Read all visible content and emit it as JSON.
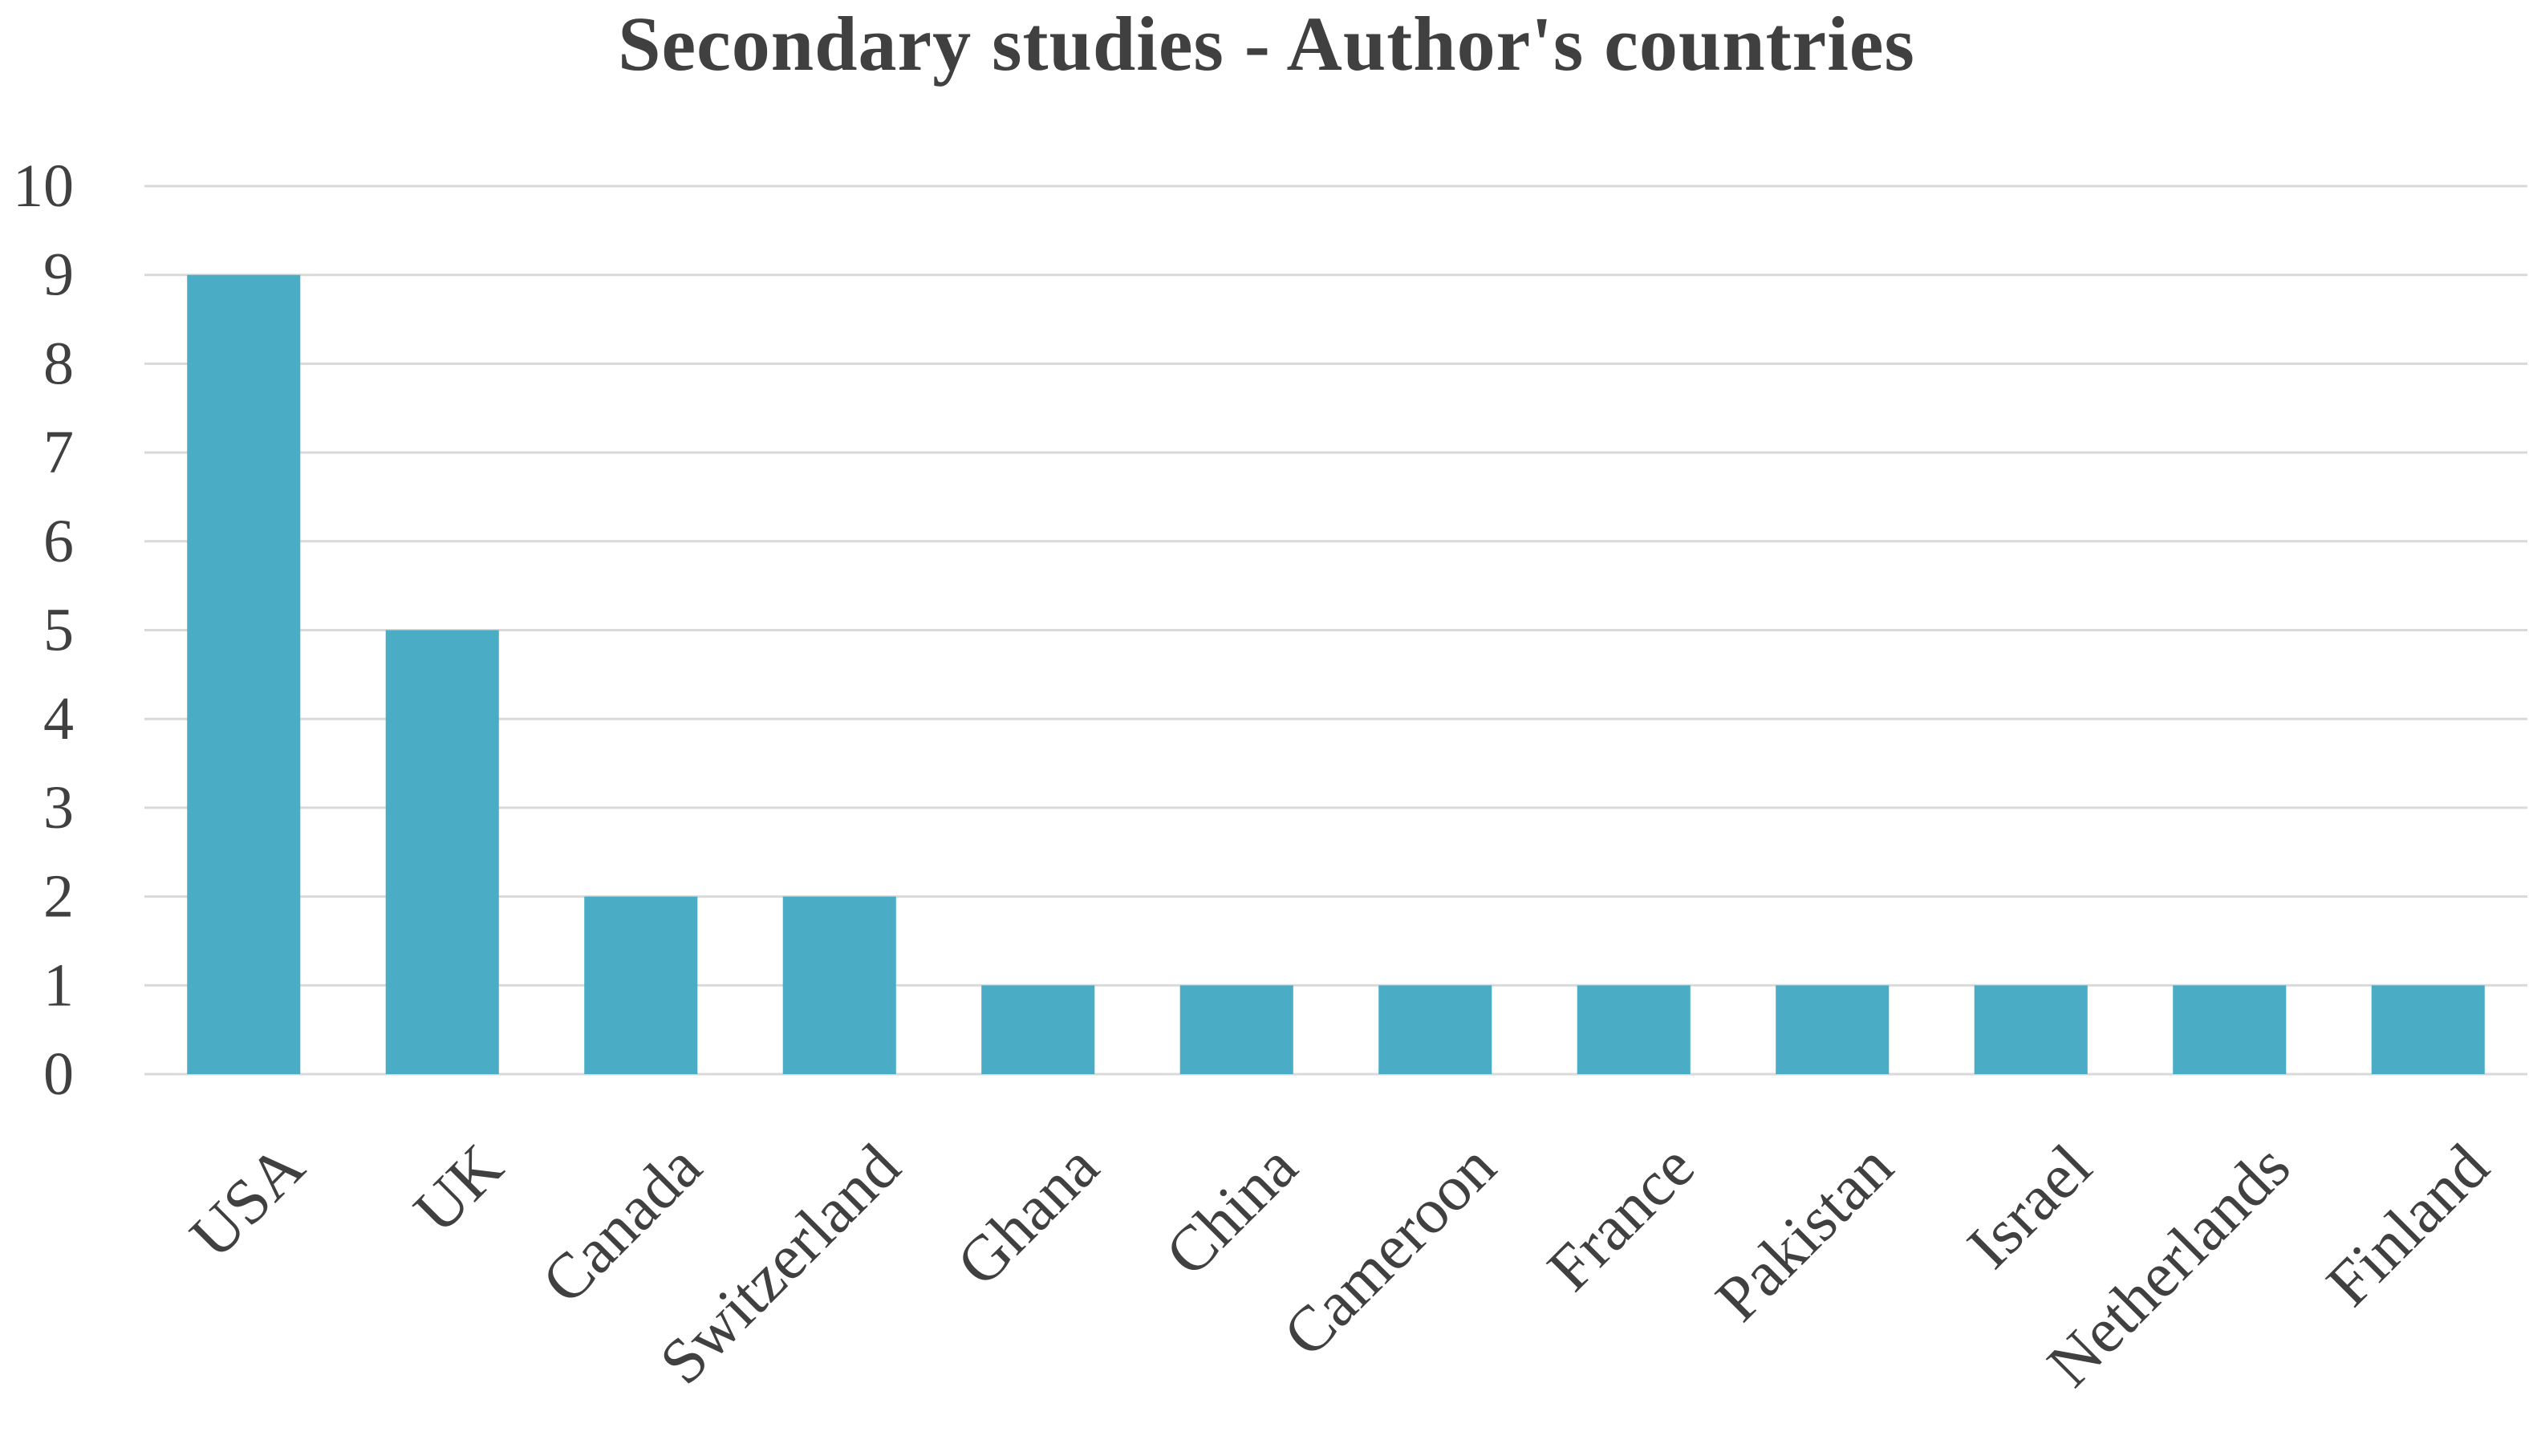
{
  "chart_data": {
    "type": "bar",
    "title": "Secondary studies - Author's countries",
    "categories": [
      "USA",
      "UK",
      "Canada",
      "Switzerland",
      "Ghana",
      "China",
      "Cameroon",
      "France",
      "Pakistan",
      "Israel",
      "Netherlands",
      "Finland"
    ],
    "values": [
      9,
      5,
      2,
      2,
      1,
      1,
      1,
      1,
      1,
      1,
      1,
      1
    ],
    "xlabel": "",
    "ylabel": "",
    "ylim": [
      0,
      10
    ],
    "yticks": [
      0,
      1,
      2,
      3,
      4,
      5,
      6,
      7,
      8,
      9,
      10
    ],
    "grid": true,
    "legend": "none",
    "bar_color": "#4BACC6",
    "grid_color": "#D9D9D9"
  }
}
